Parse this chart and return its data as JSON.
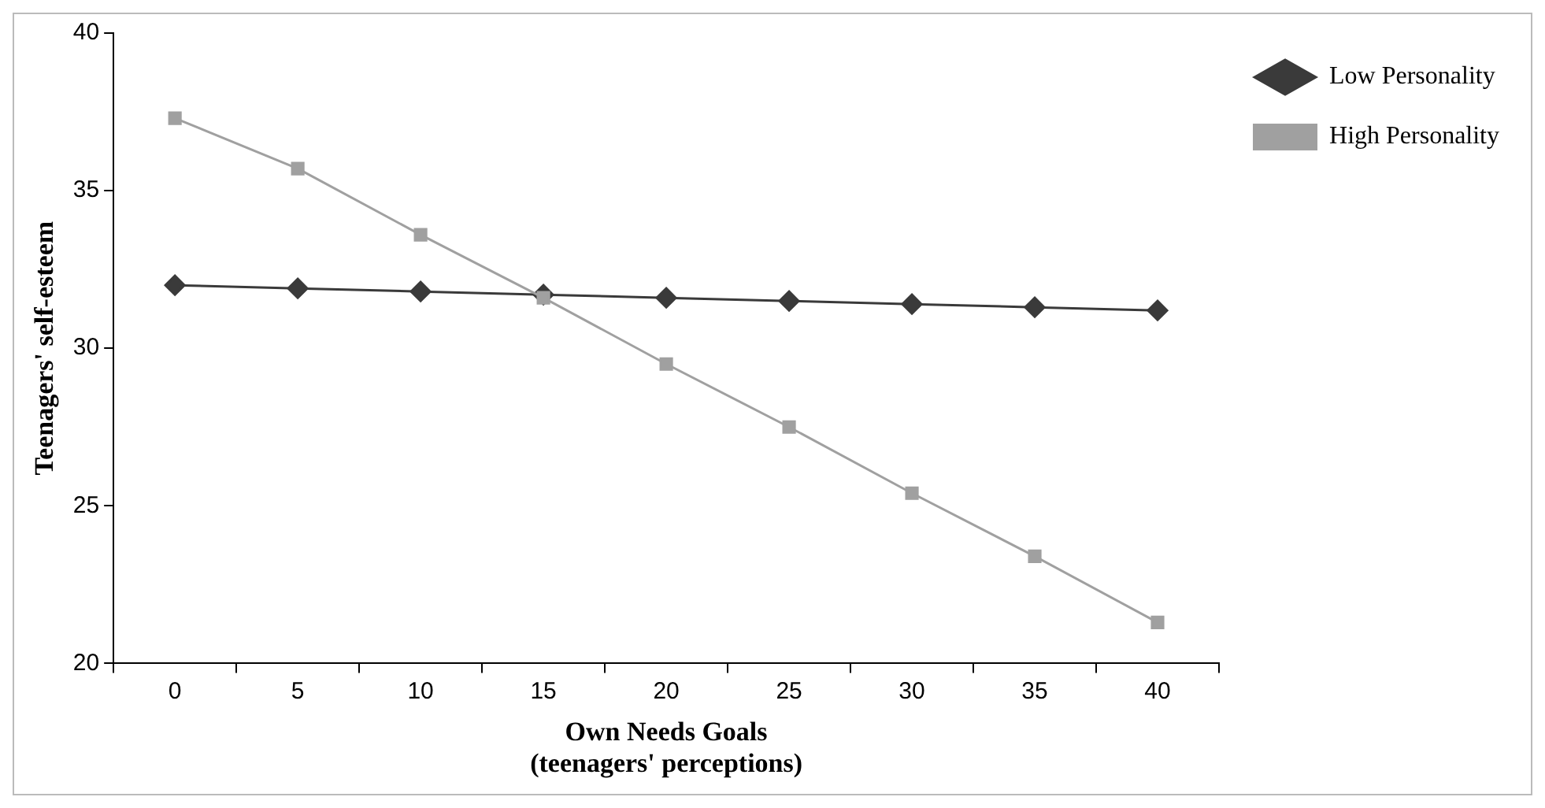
{
  "chart_data": {
    "type": "line",
    "xlabel": "Own Needs Goals\n(teenagers' perceptions)",
    "ylabel": "Teenagers' self-esteem",
    "categories": [
      "0",
      "5",
      "10",
      "15",
      "20",
      "25",
      "30",
      "35",
      "40"
    ],
    "series": [
      {
        "name": "Low Personality",
        "color": "#3a3a3a",
        "marker": "diamond",
        "values": [
          32,
          31.9,
          31.8,
          31.7,
          31.6,
          31.5,
          31.4,
          31.3,
          31.2
        ]
      },
      {
        "name": "High Personality",
        "color": "#a0a0a0",
        "marker": "square",
        "values": [
          37.3,
          35.7,
          33.6,
          31.6,
          29.5,
          27.5,
          25.4,
          23.4,
          21.3
        ]
      }
    ],
    "ylim": [
      20,
      40
    ],
    "yticks": [
      20,
      25,
      30,
      35,
      40
    ],
    "grid": false,
    "legend": "right",
    "line_style": "solid"
  }
}
